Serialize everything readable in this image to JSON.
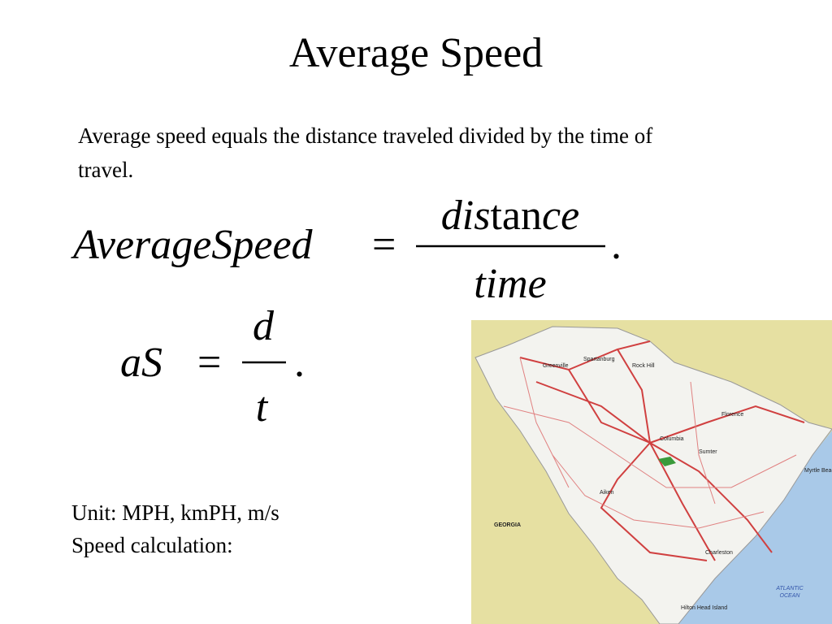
{
  "title": "Average Speed",
  "paragraph": "Average speed equals the distance traveled divided by the time of travel.",
  "equation1": {
    "lhs": "AverageSpeed",
    "eq": "=",
    "numerator": [
      "dis",
      "tan",
      "ce"
    ],
    "denominator": "time",
    "end": "."
  },
  "equation2": {
    "lhs": "aS",
    "eq": "=",
    "numerator": "d",
    "denominator": "t",
    "end": "."
  },
  "notes": [
    "Unit: MPH, kmPH, m/s",
    "Speed calculation:"
  ],
  "map": {
    "labels": [
      "GEORGIA",
      "ATLANTIC",
      "OCEAN",
      "Columbia",
      "Charleston",
      "Hilton Head Island",
      "Myrtle Beach",
      "Greenville",
      "Spartanburg",
      "Rock Hill",
      "Florence",
      "Aiken",
      "Sumter"
    ]
  }
}
